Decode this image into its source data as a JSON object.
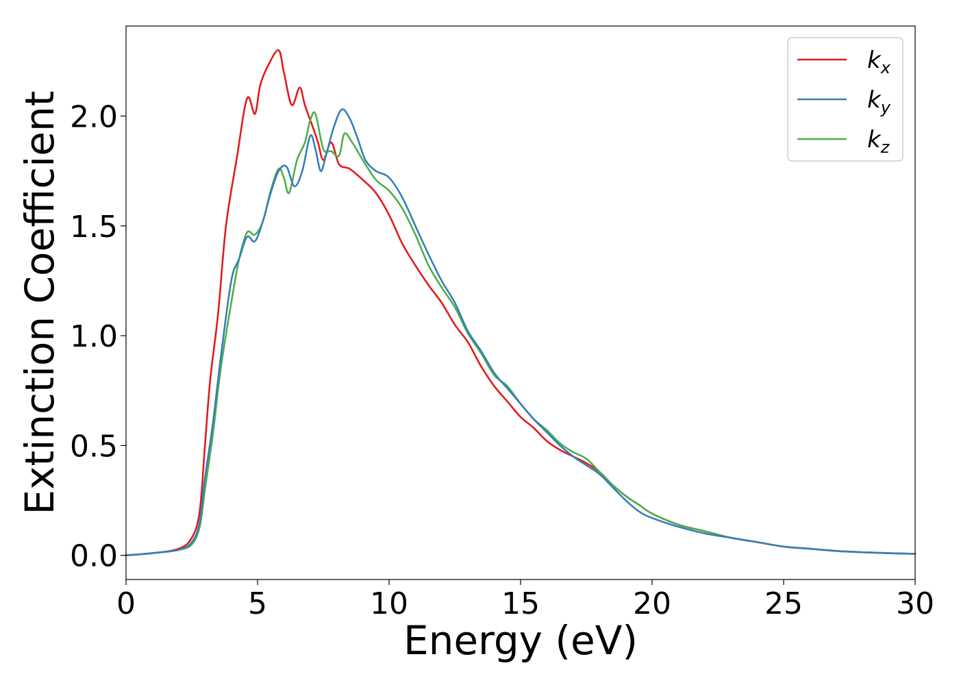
{
  "chart_data": {
    "type": "line",
    "title": "",
    "xlabel": "Energy (eV)",
    "ylabel": "Extinction Coefficient",
    "xlim": [
      0,
      30
    ],
    "ylim": [
      -0.11,
      2.41
    ],
    "xticks": [
      0,
      5,
      10,
      15,
      20,
      25,
      30
    ],
    "xtick_labels": [
      "0",
      "5",
      "10",
      "15",
      "20",
      "25",
      "30"
    ],
    "yticks": [
      0.0,
      0.5,
      1.0,
      1.5,
      2.0
    ],
    "ytick_labels": [
      "0.0",
      "0.5",
      "1.0",
      "1.5",
      "2.0"
    ],
    "grid": false,
    "legend_position": "top-right",
    "series": [
      {
        "name": "k_x",
        "legend_main": "k",
        "legend_sub": "x",
        "color": "#e41a1c",
        "points": [
          [
            0,
            0.0
          ],
          [
            1,
            0.01
          ],
          [
            2,
            0.03
          ],
          [
            2.5,
            0.08
          ],
          [
            2.8,
            0.2
          ],
          [
            3.0,
            0.5
          ],
          [
            3.2,
            0.8
          ],
          [
            3.5,
            1.1
          ],
          [
            3.8,
            1.5
          ],
          [
            4.2,
            1.8
          ],
          [
            4.6,
            2.08
          ],
          [
            4.9,
            2.01
          ],
          [
            5.1,
            2.14
          ],
          [
            5.4,
            2.23
          ],
          [
            5.8,
            2.3
          ],
          [
            6.0,
            2.2
          ],
          [
            6.3,
            2.05
          ],
          [
            6.6,
            2.13
          ],
          [
            6.8,
            2.05
          ],
          [
            7.1,
            1.95
          ],
          [
            7.3,
            1.88
          ],
          [
            7.5,
            1.8
          ],
          [
            7.8,
            1.88
          ],
          [
            8.1,
            1.78
          ],
          [
            8.5,
            1.76
          ],
          [
            9.0,
            1.71
          ],
          [
            9.5,
            1.65
          ],
          [
            10.0,
            1.55
          ],
          [
            10.5,
            1.42
          ],
          [
            11.0,
            1.32
          ],
          [
            11.5,
            1.23
          ],
          [
            12.0,
            1.15
          ],
          [
            12.5,
            1.05
          ],
          [
            13.0,
            0.97
          ],
          [
            13.5,
            0.86
          ],
          [
            14.0,
            0.77
          ],
          [
            14.5,
            0.7
          ],
          [
            15.0,
            0.63
          ],
          [
            15.5,
            0.58
          ],
          [
            16.0,
            0.52
          ],
          [
            16.5,
            0.48
          ],
          [
            17.0,
            0.45
          ],
          [
            17.5,
            0.42
          ],
          [
            18.0,
            0.38
          ],
          [
            18.5,
            0.32
          ],
          [
            19.0,
            0.27
          ],
          [
            19.5,
            0.23
          ],
          [
            20.0,
            0.19
          ],
          [
            21.0,
            0.14
          ],
          [
            22.0,
            0.11
          ],
          [
            23.0,
            0.08
          ],
          [
            24.0,
            0.06
          ],
          [
            25.0,
            0.04
          ],
          [
            26.0,
            0.03
          ],
          [
            27.0,
            0.02
          ],
          [
            28.0,
            0.014
          ],
          [
            29.0,
            0.01
          ],
          [
            30.0,
            0.007
          ]
        ]
      },
      {
        "name": "k_y",
        "legend_main": "k",
        "legend_sub": "y",
        "color": "#377eb8",
        "points": [
          [
            0,
            0.0
          ],
          [
            1,
            0.01
          ],
          [
            2,
            0.025
          ],
          [
            2.5,
            0.06
          ],
          [
            2.8,
            0.15
          ],
          [
            3.0,
            0.35
          ],
          [
            3.3,
            0.6
          ],
          [
            3.6,
            0.9
          ],
          [
            4.0,
            1.25
          ],
          [
            4.3,
            1.35
          ],
          [
            4.6,
            1.45
          ],
          [
            4.9,
            1.43
          ],
          [
            5.2,
            1.52
          ],
          [
            5.5,
            1.65
          ],
          [
            5.8,
            1.75
          ],
          [
            6.1,
            1.77
          ],
          [
            6.4,
            1.68
          ],
          [
            6.7,
            1.75
          ],
          [
            7.0,
            1.91
          ],
          [
            7.2,
            1.85
          ],
          [
            7.4,
            1.75
          ],
          [
            7.6,
            1.82
          ],
          [
            7.9,
            1.95
          ],
          [
            8.2,
            2.03
          ],
          [
            8.5,
            1.99
          ],
          [
            8.8,
            1.9
          ],
          [
            9.1,
            1.8
          ],
          [
            9.5,
            1.75
          ],
          [
            10.0,
            1.72
          ],
          [
            10.5,
            1.63
          ],
          [
            11.0,
            1.5
          ],
          [
            11.5,
            1.37
          ],
          [
            12.0,
            1.25
          ],
          [
            12.5,
            1.15
          ],
          [
            13.0,
            1.02
          ],
          [
            13.5,
            0.93
          ],
          [
            14.0,
            0.83
          ],
          [
            14.5,
            0.76
          ],
          [
            15.0,
            0.69
          ],
          [
            15.5,
            0.62
          ],
          [
            16.0,
            0.56
          ],
          [
            16.5,
            0.5
          ],
          [
            17.0,
            0.45
          ],
          [
            17.5,
            0.41
          ],
          [
            18.0,
            0.37
          ],
          [
            18.5,
            0.31
          ],
          [
            19.0,
            0.25
          ],
          [
            19.5,
            0.2
          ],
          [
            20.0,
            0.17
          ],
          [
            21.0,
            0.13
          ],
          [
            22.0,
            0.1
          ],
          [
            23.0,
            0.08
          ],
          [
            24.0,
            0.06
          ],
          [
            25.0,
            0.04
          ],
          [
            26.0,
            0.03
          ],
          [
            27.0,
            0.02
          ],
          [
            28.0,
            0.014
          ],
          [
            29.0,
            0.01
          ],
          [
            30.0,
            0.007
          ]
        ]
      },
      {
        "name": "k_z",
        "legend_main": "k",
        "legend_sub": "z",
        "color": "#4daf4a",
        "points": [
          [
            0,
            0.0
          ],
          [
            1,
            0.01
          ],
          [
            2,
            0.025
          ],
          [
            2.5,
            0.05
          ],
          [
            2.8,
            0.13
          ],
          [
            3.0,
            0.3
          ],
          [
            3.3,
            0.55
          ],
          [
            3.6,
            0.85
          ],
          [
            4.0,
            1.15
          ],
          [
            4.3,
            1.35
          ],
          [
            4.6,
            1.47
          ],
          [
            4.9,
            1.46
          ],
          [
            5.2,
            1.52
          ],
          [
            5.5,
            1.66
          ],
          [
            5.8,
            1.76
          ],
          [
            6.0,
            1.72
          ],
          [
            6.2,
            1.65
          ],
          [
            6.5,
            1.8
          ],
          [
            6.8,
            1.88
          ],
          [
            7.0,
            1.98
          ],
          [
            7.2,
            2.01
          ],
          [
            7.5,
            1.85
          ],
          [
            7.8,
            1.84
          ],
          [
            8.1,
            1.82
          ],
          [
            8.3,
            1.92
          ],
          [
            8.6,
            1.88
          ],
          [
            9.0,
            1.8
          ],
          [
            9.5,
            1.71
          ],
          [
            10.0,
            1.66
          ],
          [
            10.5,
            1.58
          ],
          [
            11.0,
            1.46
          ],
          [
            11.5,
            1.32
          ],
          [
            12.0,
            1.22
          ],
          [
            12.5,
            1.13
          ],
          [
            13.0,
            1.01
          ],
          [
            13.5,
            0.92
          ],
          [
            14.0,
            0.82
          ],
          [
            14.5,
            0.77
          ],
          [
            15.0,
            0.69
          ],
          [
            15.5,
            0.62
          ],
          [
            16.0,
            0.57
          ],
          [
            16.5,
            0.51
          ],
          [
            17.0,
            0.47
          ],
          [
            17.5,
            0.44
          ],
          [
            18.0,
            0.38
          ],
          [
            18.5,
            0.32
          ],
          [
            19.0,
            0.27
          ],
          [
            19.5,
            0.23
          ],
          [
            20.0,
            0.19
          ],
          [
            21.0,
            0.14
          ],
          [
            22.0,
            0.11
          ],
          [
            23.0,
            0.08
          ],
          [
            24.0,
            0.06
          ],
          [
            25.0,
            0.04
          ],
          [
            26.0,
            0.03
          ],
          [
            27.0,
            0.02
          ],
          [
            28.0,
            0.014
          ],
          [
            29.0,
            0.01
          ],
          [
            30.0,
            0.007
          ]
        ]
      }
    ]
  }
}
